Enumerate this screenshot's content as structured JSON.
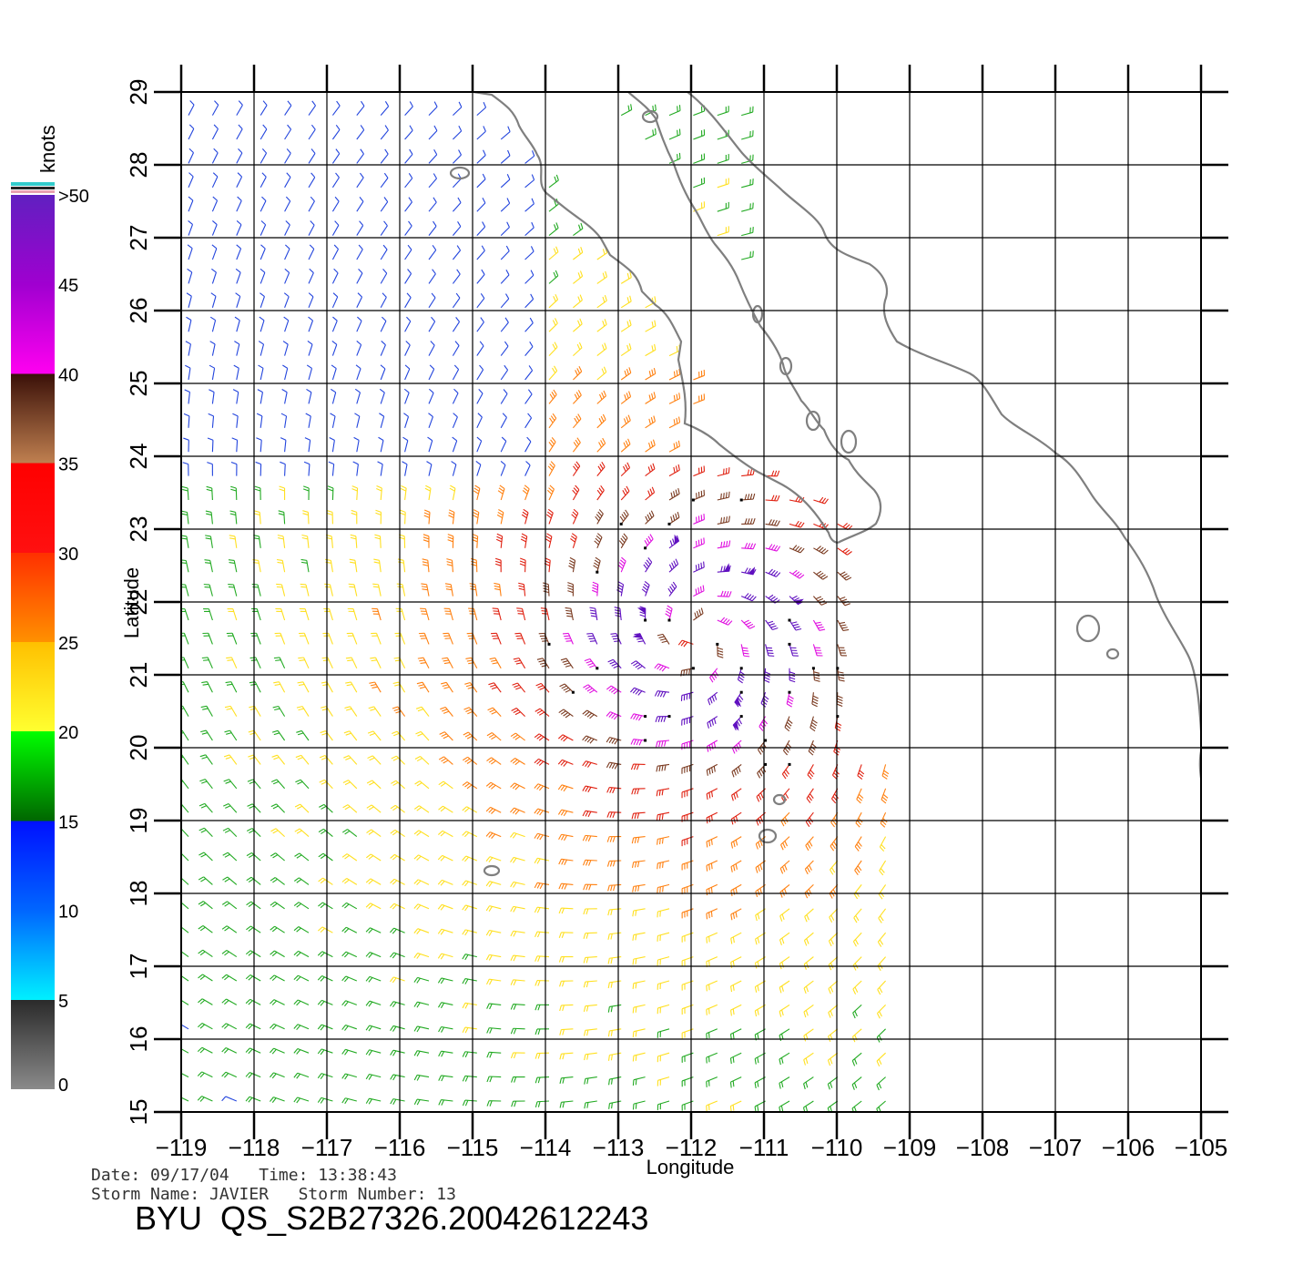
{
  "figure": {
    "xlabel": "Longitude",
    "ylabel": "Latitude",
    "colorbar_title": "knots",
    "info": {
      "line1": "Date: 09/17/04   Time: 13:38:43",
      "line2": "Storm Name: JAVIER   Storm Number: 13"
    },
    "product_id": "BYU  QS_S2B27326.20042612243"
  },
  "colors": {
    "land_outline": "#7f7f7f",
    "grid": "#000000"
  },
  "colorbar": {
    "labels": [
      "0",
      "5",
      "10",
      "15",
      "20",
      "25",
      "30",
      "35",
      "40",
      "45",
      ">50"
    ]
  },
  "chart_data": {
    "type": "map",
    "title": "",
    "xlabel": "Longitude",
    "ylabel": "Latitude",
    "xlim": [
      -119,
      -105
    ],
    "ylim": [
      15,
      29
    ],
    "xticks": [
      "-119",
      "-118",
      "-117",
      "-116",
      "-115",
      "-114",
      "-113",
      "-112",
      "-111",
      "-110",
      "-109",
      "-108",
      "-107",
      "-106",
      "-105"
    ],
    "yticks": [
      "15",
      "16",
      "17",
      "18",
      "19",
      "20",
      "21",
      "22",
      "23",
      "24",
      "25",
      "26",
      "27",
      "28",
      "29"
    ],
    "grid": true,
    "legend": "left colorbar, wind speed in knots",
    "storm_center": {
      "lon": -111.9,
      "lat": 21.5
    },
    "peak_wind_knots": 50,
    "swath_east_edge_lon": -109.1,
    "wind_speed_bins": [
      {
        "range": "0-5",
        "color": "#666666"
      },
      {
        "range": "5-10",
        "color": "#22ccee"
      },
      {
        "range": "10-15",
        "color": "#2244dd"
      },
      {
        "range": "15-20",
        "color": "#22aa22"
      },
      {
        "range": "20-25",
        "color": "#ffe020"
      },
      {
        "range": "25-30",
        "color": "#ff8010"
      },
      {
        "range": "30-35",
        "color": "#e02010"
      },
      {
        "range": "35-40",
        "color": "#7a3a20"
      },
      {
        "range": "40-45",
        "color": "#e010e0"
      },
      {
        "range": ">50",
        "color": "#6010c0"
      }
    ]
  }
}
